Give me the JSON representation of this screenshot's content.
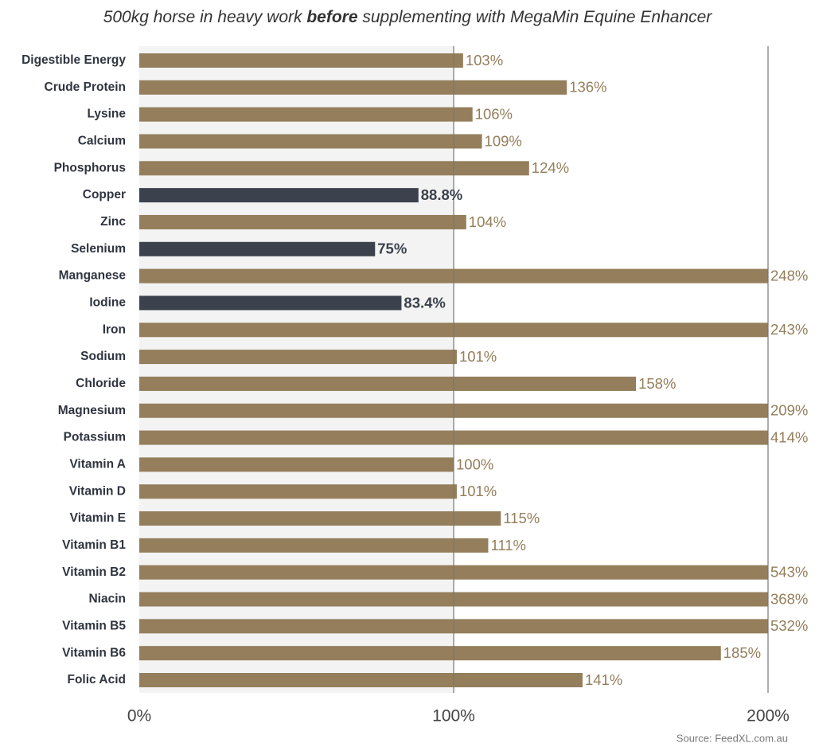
{
  "chart_data": {
    "type": "barh",
    "title": [
      "500kg horse in heavy work",
      "before",
      "supplementing with MegaMin Equine Enhancer"
    ],
    "source": "Source: FeedXL.com.au",
    "categories": [
      "Digestible Energy",
      "Crude Protein",
      "Lysine",
      "Calcium",
      "Phosphorus",
      "Copper",
      "Zinc",
      "Selenium",
      "Manganese",
      "Iodine",
      "Iron",
      "Sodium",
      "Chloride",
      "Magnesium",
      "Potassium",
      "Vitamin A",
      "Vitamin D",
      "Vitamin E",
      "Vitamin B1",
      "Vitamin B2",
      "Niacin",
      "Vitamin B5",
      "Vitamin B6",
      "Folic Acid"
    ],
    "values": [
      103,
      136,
      106,
      109,
      124,
      88.8,
      104,
      75,
      248,
      83.4,
      243,
      101,
      158,
      209,
      414,
      100,
      101,
      115,
      111,
      543,
      368,
      532,
      185,
      141
    ],
    "value_labels": [
      "103%",
      "136%",
      "106%",
      "109%",
      "124%",
      "88.8%",
      "104%",
      "75%",
      "248%",
      "83.4%",
      "243%",
      "101%",
      "158%",
      "209%",
      "414%",
      "100%",
      "101%",
      "115%",
      "111%",
      "543%",
      "368%",
      "532%",
      "185%",
      "141%"
    ],
    "colors": [
      "#947e5b",
      "#947e5b",
      "#947e5b",
      "#947e5b",
      "#947e5b",
      "#3b424d",
      "#947e5b",
      "#3b424d",
      "#947e5b",
      "#3b424d",
      "#947e5b",
      "#947e5b",
      "#947e5b",
      "#947e5b",
      "#947e5b",
      "#947e5b",
      "#947e5b",
      "#947e5b",
      "#947e5b",
      "#947e5b",
      "#947e5b",
      "#947e5b",
      "#947e5b",
      "#947e5b"
    ],
    "xlim": [
      0,
      200
    ],
    "xticks": [
      {
        "value": 0,
        "label": "0%"
      },
      {
        "value": 100,
        "label": "100%"
      },
      {
        "value": 200,
        "label": "200%"
      }
    ],
    "grid": true
  }
}
